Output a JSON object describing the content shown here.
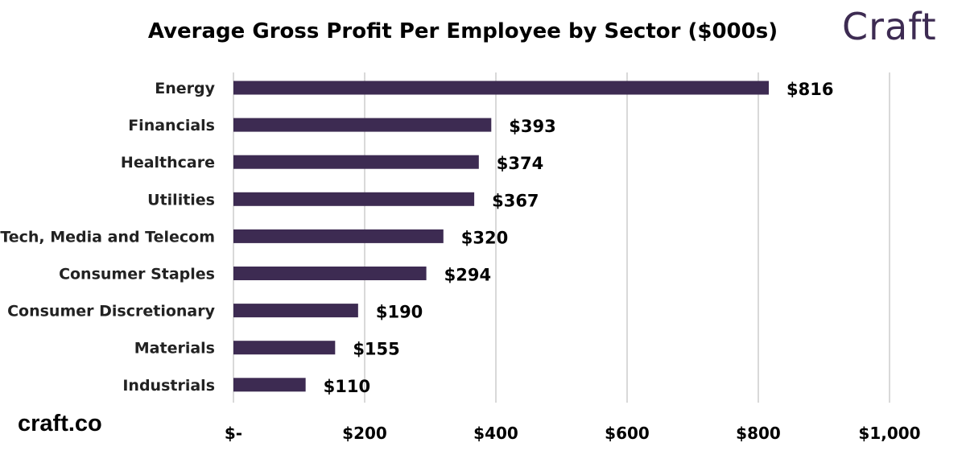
{
  "logo_text": "Craft",
  "site_text": "craft.co",
  "chart_data": {
    "type": "bar",
    "orientation": "horizontal",
    "title": "Average Gross Profit Per Employee by Sector ($000s)",
    "categories": [
      "Energy",
      "Financials",
      "Healthcare",
      "Utilities",
      "Tech, Media and Telecom",
      "Consumer Staples",
      "Consumer Discretionary",
      "Materials",
      "Industrials"
    ],
    "values": [
      816,
      393,
      374,
      367,
      320,
      294,
      190,
      155,
      110
    ],
    "data_labels": [
      "$816",
      "$393",
      "$374",
      "$367",
      "$320",
      "$294",
      "$190",
      "$155",
      "$110"
    ],
    "xlim": [
      0,
      1000
    ],
    "x_ticks": [
      0,
      200,
      400,
      600,
      800,
      1000
    ],
    "x_tick_labels": [
      "$-",
      "$200",
      "$400",
      "$600",
      "$800",
      "$1,000"
    ],
    "grid": "vertical",
    "bar_color": "#3d2b52",
    "xlabel": "",
    "ylabel": ""
  }
}
